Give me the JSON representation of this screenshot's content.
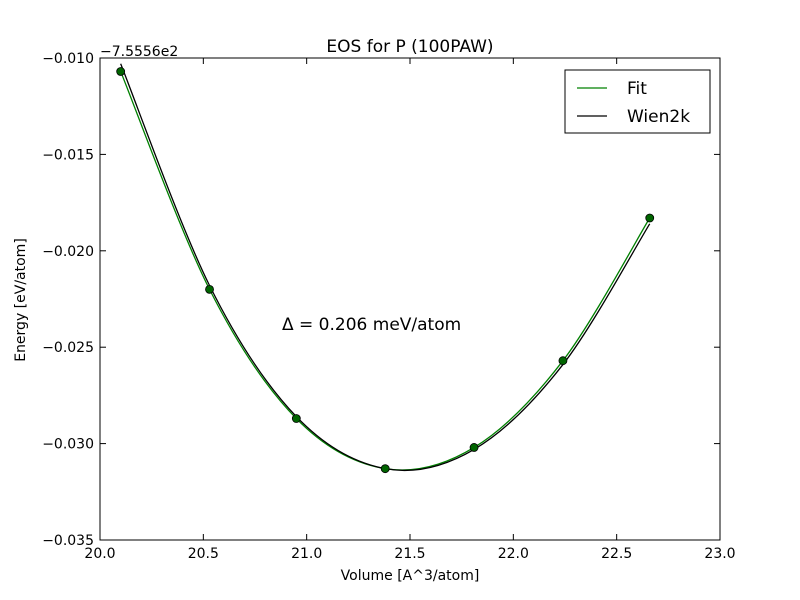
{
  "chart_data": {
    "type": "line",
    "title": "EOS for P (100PAW)",
    "xlabel": "Volume [A^3/atom]",
    "ylabel": "Energy [eV/atom]",
    "offset_text": "−7.5556e2",
    "annotation": "Δ = 0.206 meV/atom",
    "xlim": [
      20.0,
      23.0
    ],
    "ylim": [
      -0.035,
      -0.01
    ],
    "x_ticks": [
      "20.0",
      "20.5",
      "21.0",
      "21.5",
      "22.0",
      "22.5",
      "23.0"
    ],
    "y_ticks": [
      "−0.010",
      "−0.015",
      "−0.020",
      "−0.025",
      "−0.030",
      "−0.035"
    ],
    "legend_position": "top-right",
    "grid": false,
    "points": {
      "x": [
        20.1,
        20.53,
        20.95,
        21.38,
        21.81,
        22.24,
        22.66
      ],
      "y": [
        -0.0107,
        -0.022,
        -0.0287,
        -0.0313,
        -0.0302,
        -0.0257,
        -0.0183
      ],
      "color": "#006400"
    },
    "series": [
      {
        "name": "Fit",
        "color": "#008000",
        "x": [
          20.1,
          20.53,
          20.95,
          21.38,
          21.81,
          22.24,
          22.66
        ],
        "y": [
          -0.0107,
          -0.022,
          -0.0287,
          -0.0313,
          -0.0302,
          -0.0257,
          -0.0183
        ]
      },
      {
        "name": "Wien2k",
        "color": "#000000",
        "x": [
          20.1,
          20.53,
          20.95,
          21.38,
          21.81,
          22.24,
          22.66
        ],
        "y": [
          -0.0103,
          -0.0218,
          -0.0286,
          -0.0313,
          -0.0303,
          -0.0259,
          -0.0186
        ]
      }
    ]
  }
}
